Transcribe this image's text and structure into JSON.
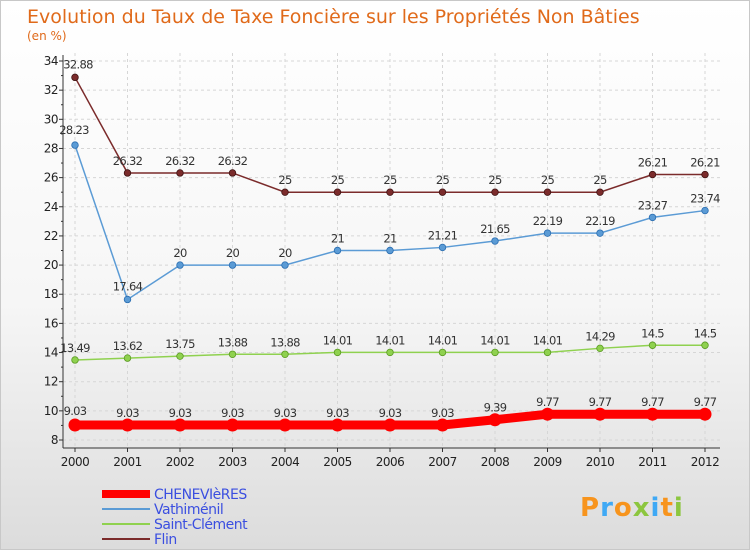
{
  "chart_data": {
    "type": "line",
    "title": "Evolution du Taux de Taxe Foncière sur les Propriétés Non Bâties",
    "ylabel": "(en %)",
    "xlabel": "",
    "x": [
      "2000",
      "2001",
      "2002",
      "2003",
      "2004",
      "2005",
      "2006",
      "2007",
      "2008",
      "2009",
      "2010",
      "2011",
      "2012"
    ],
    "ylim": [
      8,
      34
    ],
    "yticks": [
      "8",
      "10",
      "12",
      "14",
      "16",
      "18",
      "20",
      "22",
      "24",
      "26",
      "28",
      "30",
      "32",
      "34"
    ],
    "grid": true,
    "legend_position": "bottom-left",
    "series": [
      {
        "name": "CHENEVIèRES",
        "color": "#ff0000",
        "values": [
          9.03,
          9.03,
          9.03,
          9.03,
          9.03,
          9.03,
          9.03,
          9.03,
          9.39,
          9.77,
          9.77,
          9.77,
          9.77
        ],
        "labels": [
          "9.03",
          "9.03",
          "9.03",
          "9.03",
          "9.03",
          "9.03",
          "9.03",
          "9.03",
          "9.39",
          "9.77",
          "9.77",
          "9.77",
          "9.77"
        ]
      },
      {
        "name": "Vathiménil",
        "color": "#5b9bd5",
        "values": [
          28.23,
          17.64,
          20,
          20,
          20,
          21,
          21,
          21.21,
          21.65,
          22.19,
          22.19,
          23.27,
          23.74
        ],
        "labels": [
          "28.23",
          "17.64",
          "20",
          "20",
          "20",
          "21",
          "21",
          "21.21",
          "21.65",
          "22.19",
          "22.19",
          "23.27",
          "23.74"
        ]
      },
      {
        "name": "Saint-Clément",
        "color": "#8fd14f",
        "values": [
          13.49,
          13.62,
          13.75,
          13.88,
          13.88,
          14.01,
          14.01,
          14.01,
          14.01,
          14.01,
          14.29,
          14.5,
          14.5
        ],
        "labels": [
          "13.49",
          "13.62",
          "13.75",
          "13.88",
          "13.88",
          "14.01",
          "14.01",
          "14.01",
          "14.01",
          "14.01",
          "14.29",
          "14.5",
          "14.5"
        ]
      },
      {
        "name": "Flin",
        "color": "#7b2b2b",
        "values": [
          32.88,
          26.32,
          26.32,
          26.32,
          25,
          25,
          25,
          25,
          25,
          25,
          25,
          26.21,
          26.21
        ],
        "labels": [
          "32.88",
          "26.32",
          "26.32",
          "26.32",
          "25",
          "25",
          "25",
          "25",
          "25",
          "25",
          "25",
          "26.21",
          "26.21"
        ]
      }
    ]
  },
  "branding": {
    "logo_text": "Proxiti",
    "logo_colors": [
      "#f7941d",
      "#3fa9f5",
      "#f7941d",
      "#8cc63f",
      "#3fa9f5",
      "#f7941d",
      "#8cc63f"
    ]
  }
}
